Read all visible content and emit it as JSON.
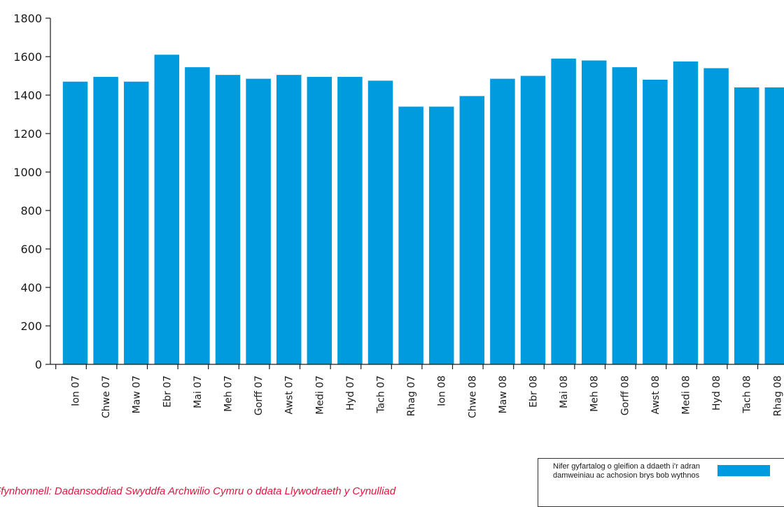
{
  "chart_data": {
    "type": "bar",
    "categories": [
      "Ion 07",
      "Chwe 07",
      "Maw 07",
      "Ebr 07",
      "Mai 07",
      "Meh 07",
      "Gorff 07",
      "Awst 07",
      "Medi 07",
      "Hyd 07",
      "Tach 07",
      "Rhag 07",
      "Ion 08",
      "Chwe 08",
      "Maw 08",
      "Ebr 08",
      "Mai 08",
      "Meh 08",
      "Gorff 08",
      "Awst 08",
      "Medi 08",
      "Hyd 08",
      "Tach 08",
      "Rhag 08"
    ],
    "values": [
      1470,
      1495,
      1470,
      1610,
      1545,
      1505,
      1485,
      1505,
      1495,
      1495,
      1475,
      1340,
      1340,
      1395,
      1485,
      1500,
      1590,
      1580,
      1545,
      1480,
      1575,
      1540,
      1440,
      1440
    ],
    "yticks": [
      "0",
      "200",
      "400",
      "600",
      "800",
      "1000",
      "1200",
      "1400",
      "1600",
      "1800"
    ],
    "ylim": [
      0,
      1800
    ],
    "bar_color": "#009ade",
    "legend": {
      "label": "Nifer gyfartalog o gleifion a ddaeth i'r adran damweiniau ac achosion brys bob wythnos",
      "position": "bottom-right"
    },
    "grid": false
  },
  "source": "Ffynhonnell: Dadansoddiad Swyddfa Archwilio Cymru o ddata Llywodraeth y Cynulliad"
}
